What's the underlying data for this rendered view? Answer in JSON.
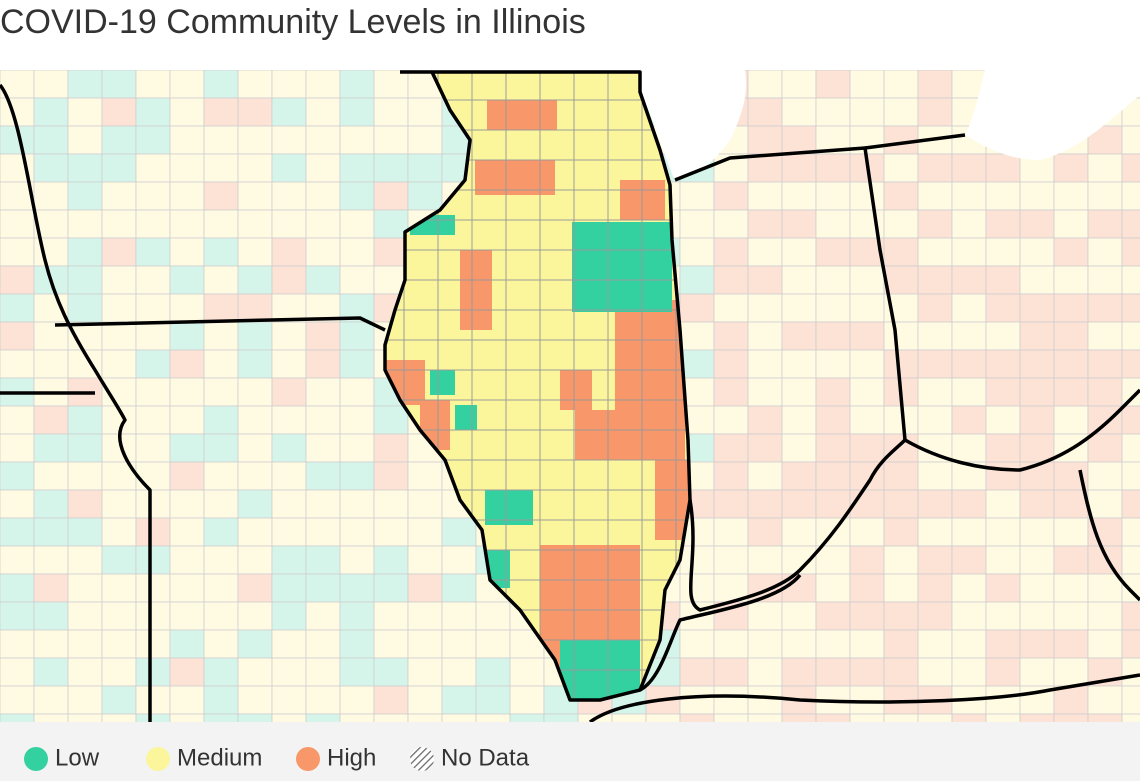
{
  "title": "COVID-19 Community Levels in Illinois",
  "legend": [
    {
      "label": "Low",
      "color": "#34d1a0"
    },
    {
      "label": "Medium",
      "color": "#fbf59c"
    },
    {
      "label": "High",
      "color": "#f7976a"
    },
    {
      "label": "No Data"
    }
  ]
}
